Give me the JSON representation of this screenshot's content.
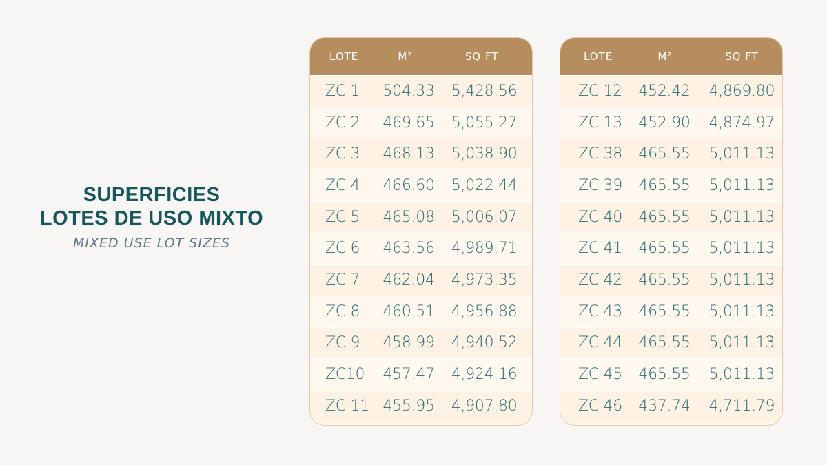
{
  "title": {
    "line1": "SUPERFICIES",
    "line2": "LOTES DE USO MIXTO",
    "subtitle": "MIXED USE LOT SIZES"
  },
  "headers": {
    "lote": "LOTE",
    "m2": "M²",
    "sqft": "SQ FT"
  },
  "table_left": {
    "rows": [
      {
        "lote": "ZC 1",
        "m2": "504.33",
        "sqft": "5,428.56"
      },
      {
        "lote": "ZC 2",
        "m2": "469.65",
        "sqft": "5,055.27"
      },
      {
        "lote": "ZC 3",
        "m2": "468.13",
        "sqft": "5,038.90"
      },
      {
        "lote": "ZC 4",
        "m2": "466.60",
        "sqft": "5,022.44"
      },
      {
        "lote": "ZC 5",
        "m2": "465.08",
        "sqft": "5,006.07"
      },
      {
        "lote": "ZC 6",
        "m2": "463.56",
        "sqft": "4,989.71"
      },
      {
        "lote": "ZC 7",
        "m2": "462.04",
        "sqft": "4,973.35"
      },
      {
        "lote": "ZC 8",
        "m2": "460.51",
        "sqft": "4,956.88"
      },
      {
        "lote": "ZC 9",
        "m2": "458.99",
        "sqft": "4,940.52"
      },
      {
        "lote": "ZC10",
        "m2": "457.47",
        "sqft": "4,924.16"
      },
      {
        "lote": "ZC 11",
        "m2": "455.95",
        "sqft": "4,907.80"
      }
    ]
  },
  "table_right": {
    "rows": [
      {
        "lote": "ZC 12",
        "m2": "452.42",
        "sqft": "4,869.80"
      },
      {
        "lote": "ZC 13",
        "m2": "452.90",
        "sqft": "4,874.97"
      },
      {
        "lote": "ZC 38",
        "m2": "465.55",
        "sqft": "5,011.13"
      },
      {
        "lote": "ZC 39",
        "m2": "465.55",
        "sqft": "5,011.13"
      },
      {
        "lote": "ZC 40",
        "m2": "465.55",
        "sqft": "5,011.13"
      },
      {
        "lote": "ZC 41",
        "m2": "465.55",
        "sqft": "5,011.13"
      },
      {
        "lote": "ZC 42",
        "m2": "465.55",
        "sqft": "5,011.13"
      },
      {
        "lote": "ZC 43",
        "m2": "465.55",
        "sqft": "5,011.13"
      },
      {
        "lote": "ZC 44",
        "m2": "465.55",
        "sqft": "5,011.13"
      },
      {
        "lote": "ZC 45",
        "m2": "465.55",
        "sqft": "5,011.13"
      },
      {
        "lote": "ZC 46",
        "m2": "437.74",
        "sqft": "4,711.79"
      }
    ]
  },
  "colors": {
    "title": "#17575c",
    "subtitle": "#5f7a86",
    "header_bg": "#b68d5e",
    "row_text": "#2e6a72",
    "table_bg": "#fff6ea"
  }
}
